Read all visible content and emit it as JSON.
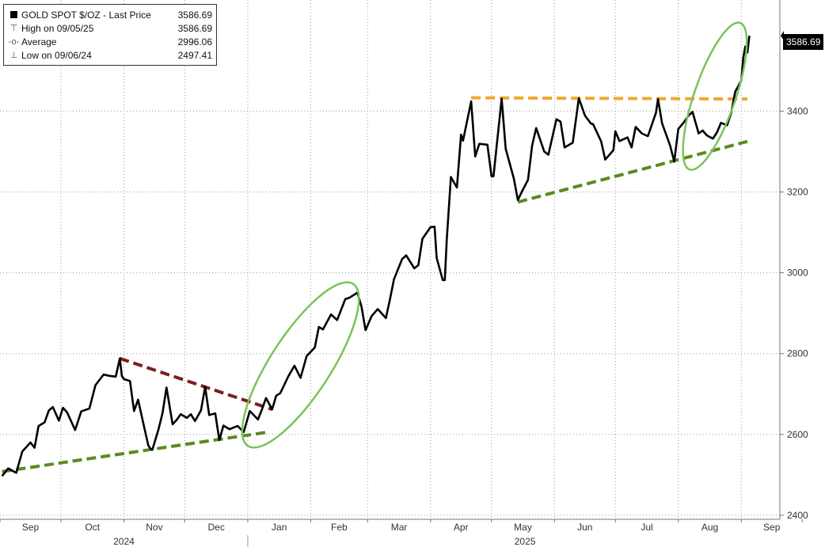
{
  "legend": {
    "title": "GOLD SPOT $/OZ - Last Price",
    "title_value": "3586.69",
    "rows": [
      {
        "symbol": "⊤",
        "label": "High on 09/05/25",
        "value": "3586.69"
      },
      {
        "symbol": "-o-",
        "label": "Average",
        "value": "2996.06"
      },
      {
        "symbol": "⊥",
        "label": "Low on 09/06/24",
        "value": "2497.41"
      }
    ]
  },
  "last_price_label": "3586.69",
  "chart_data": {
    "type": "line",
    "title": "GOLD SPOT $/OZ",
    "x_axis": {
      "months": [
        "Sep",
        "Oct",
        "Nov",
        "Dec",
        "Jan",
        "Feb",
        "Mar",
        "Apr",
        "May",
        "Jun",
        "Jul",
        "Aug",
        "Sep"
      ],
      "years": [
        "2024",
        "2025"
      ]
    },
    "y_axis": {
      "ticks": [
        2400,
        2600,
        2800,
        3000,
        3200,
        3400
      ],
      "range": [
        2390,
        3675
      ],
      "grid": true
    },
    "series": [
      {
        "name": "GOLD SPOT $/OZ - Last Price",
        "color": "#000000",
        "points": [
          [
            "2024-09-02",
            2497
          ],
          [
            "2024-09-05",
            2516
          ],
          [
            "2024-09-09",
            2505
          ],
          [
            "2024-09-12",
            2558
          ],
          [
            "2024-09-16",
            2580
          ],
          [
            "2024-09-18",
            2567
          ],
          [
            "2024-09-20",
            2621
          ],
          [
            "2024-09-23",
            2630
          ],
          [
            "2024-09-25",
            2659
          ],
          [
            "2024-09-27",
            2668
          ],
          [
            "2024-09-30",
            2634
          ],
          [
            "2024-10-02",
            2666
          ],
          [
            "2024-10-04",
            2655
          ],
          [
            "2024-10-08",
            2611
          ],
          [
            "2024-10-11",
            2657
          ],
          [
            "2024-10-15",
            2664
          ],
          [
            "2024-10-18",
            2722
          ],
          [
            "2024-10-22",
            2748
          ],
          [
            "2024-10-25",
            2745
          ],
          [
            "2024-10-28",
            2743
          ],
          [
            "2024-10-30",
            2788
          ],
          [
            "2024-10-31",
            2745
          ],
          [
            "2024-11-01",
            2737
          ],
          [
            "2024-11-04",
            2732
          ],
          [
            "2024-11-06",
            2658
          ],
          [
            "2024-11-08",
            2686
          ],
          [
            "2024-11-11",
            2618
          ],
          [
            "2024-11-13",
            2573
          ],
          [
            "2024-11-14",
            2565
          ],
          [
            "2024-11-15",
            2562
          ],
          [
            "2024-11-18",
            2612
          ],
          [
            "2024-11-20",
            2652
          ],
          [
            "2024-11-22",
            2716
          ],
          [
            "2024-11-25",
            2625
          ],
          [
            "2024-11-27",
            2636
          ],
          [
            "2024-11-29",
            2650
          ],
          [
            "2024-12-02",
            2641
          ],
          [
            "2024-12-04",
            2650
          ],
          [
            "2024-12-06",
            2633
          ],
          [
            "2024-12-09",
            2660
          ],
          [
            "2024-12-11",
            2718
          ],
          [
            "2024-12-13",
            2648
          ],
          [
            "2024-12-16",
            2652
          ],
          [
            "2024-12-18",
            2586
          ],
          [
            "2024-12-20",
            2622
          ],
          [
            "2024-12-23",
            2613
          ],
          [
            "2024-12-27",
            2621
          ],
          [
            "2024-12-30",
            2606
          ],
          [
            "2025-01-02",
            2658
          ],
          [
            "2025-01-06",
            2637
          ],
          [
            "2025-01-08",
            2662
          ],
          [
            "2025-01-10",
            2690
          ],
          [
            "2025-01-13",
            2662
          ],
          [
            "2025-01-15",
            2696
          ],
          [
            "2025-01-17",
            2702
          ],
          [
            "2025-01-21",
            2744
          ],
          [
            "2025-01-24",
            2770
          ],
          [
            "2025-01-27",
            2740
          ],
          [
            "2025-01-30",
            2794
          ],
          [
            "2025-02-03",
            2815
          ],
          [
            "2025-02-05",
            2866
          ],
          [
            "2025-02-07",
            2860
          ],
          [
            "2025-02-11",
            2897
          ],
          [
            "2025-02-14",
            2883
          ],
          [
            "2025-02-18",
            2935
          ],
          [
            "2025-02-20",
            2938
          ],
          [
            "2025-02-24",
            2951
          ],
          [
            "2025-02-26",
            2916
          ],
          [
            "2025-02-28",
            2858
          ],
          [
            "2025-03-03",
            2893
          ],
          [
            "2025-03-06",
            2910
          ],
          [
            "2025-03-10",
            2888
          ],
          [
            "2025-03-12",
            2934
          ],
          [
            "2025-03-14",
            2984
          ],
          [
            "2025-03-18",
            3034
          ],
          [
            "2025-03-20",
            3043
          ],
          [
            "2025-03-24",
            3011
          ],
          [
            "2025-03-26",
            3019
          ],
          [
            "2025-03-28",
            3084
          ],
          [
            "2025-04-01",
            3113
          ],
          [
            "2025-04-03",
            3114
          ],
          [
            "2025-04-04",
            3037
          ],
          [
            "2025-04-07",
            2982
          ],
          [
            "2025-04-08",
            2982
          ],
          [
            "2025-04-09",
            3083
          ],
          [
            "2025-04-11",
            3237
          ],
          [
            "2025-04-14",
            3211
          ],
          [
            "2025-04-16",
            3342
          ],
          [
            "2025-04-17",
            3327
          ],
          [
            "2025-04-21",
            3424
          ],
          [
            "2025-04-23",
            3288
          ],
          [
            "2025-04-25",
            3319
          ],
          [
            "2025-04-29",
            3317
          ],
          [
            "2025-05-01",
            3239
          ],
          [
            "2025-05-02",
            3239
          ],
          [
            "2025-05-06",
            3431
          ],
          [
            "2025-05-08",
            3307
          ],
          [
            "2025-05-12",
            3233
          ],
          [
            "2025-05-14",
            3180
          ],
          [
            "2025-05-16",
            3201
          ],
          [
            "2025-05-19",
            3230
          ],
          [
            "2025-05-21",
            3315
          ],
          [
            "2025-05-23",
            3358
          ],
          [
            "2025-05-27",
            3300
          ],
          [
            "2025-05-29",
            3292
          ],
          [
            "2025-06-02",
            3380
          ],
          [
            "2025-06-04",
            3374
          ],
          [
            "2025-06-06",
            3310
          ],
          [
            "2025-06-10",
            3322
          ],
          [
            "2025-06-13",
            3432
          ],
          [
            "2025-06-16",
            3389
          ],
          [
            "2025-06-19",
            3369
          ],
          [
            "2025-06-20",
            3368
          ],
          [
            "2025-06-24",
            3325
          ],
          [
            "2025-06-26",
            3280
          ],
          [
            "2025-06-30",
            3303
          ],
          [
            "2025-07-01",
            3350
          ],
          [
            "2025-07-03",
            3326
          ],
          [
            "2025-07-07",
            3335
          ],
          [
            "2025-07-09",
            3310
          ],
          [
            "2025-07-11",
            3361
          ],
          [
            "2025-07-14",
            3345
          ],
          [
            "2025-07-17",
            3338
          ],
          [
            "2025-07-21",
            3396
          ],
          [
            "2025-07-22",
            3430
          ],
          [
            "2025-07-24",
            3370
          ],
          [
            "2025-07-28",
            3314
          ],
          [
            "2025-07-30",
            3275
          ],
          [
            "2025-08-01",
            3356
          ],
          [
            "2025-08-04",
            3374
          ],
          [
            "2025-08-06",
            3389
          ],
          [
            "2025-08-08",
            3398
          ],
          [
            "2025-08-11",
            3345
          ],
          [
            "2025-08-13",
            3352
          ],
          [
            "2025-08-15",
            3340
          ],
          [
            "2025-08-18",
            3332
          ],
          [
            "2025-08-20",
            3347
          ],
          [
            "2025-08-22",
            3371
          ],
          [
            "2025-08-25",
            3365
          ],
          [
            "2025-08-27",
            3395
          ],
          [
            "2025-08-29",
            3448
          ],
          [
            "2025-09-01",
            3476
          ],
          [
            "2025-09-02",
            3533
          ],
          [
            "2025-09-03",
            3560
          ],
          [
            "2025-09-04",
            3545
          ],
          [
            "2025-09-05",
            3586.69
          ]
        ]
      }
    ],
    "trendlines": [
      {
        "color": "#5b8a1f",
        "style": "dashed",
        "from": [
          "2024-09-02",
          2508
        ],
        "to": [
          "2025-01-10",
          2605
        ]
      },
      {
        "color": "#7a1f1f",
        "style": "dashed",
        "from": [
          "2024-10-30",
          2788
        ],
        "to": [
          "2025-01-13",
          2662
        ]
      },
      {
        "color": "#f0a830",
        "style": "dashed",
        "from": [
          "2025-04-21",
          3433
        ],
        "to": [
          "2025-09-04",
          3430
        ]
      },
      {
        "color": "#5b8a1f",
        "style": "dashed",
        "from": [
          "2025-05-14",
          3175
        ],
        "to": [
          "2025-09-04",
          3325
        ]
      }
    ],
    "highlights": [
      {
        "shape": "ellipse",
        "color": "#7cc35a",
        "center": [
          "2025-01-27",
          2772
        ],
        "note": "breakout circle 1"
      },
      {
        "shape": "ellipse",
        "color": "#7cc35a",
        "center": [
          "2025-08-19",
          3437
        ],
        "note": "breakout circle 2"
      }
    ]
  }
}
